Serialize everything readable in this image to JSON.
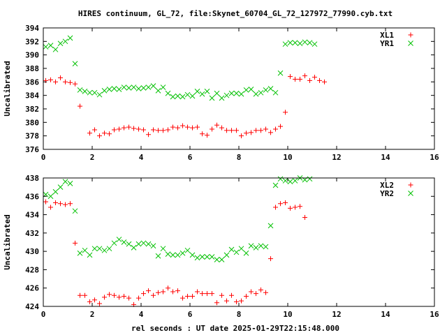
{
  "title": "HIRES continuum, GL_72, file:Skynet_60704_GL_72_127972_77990.cyb.txt",
  "xlabel": "rel seconds : UT date 2025-01-29T22:15:48.000",
  "colors": {
    "L": "#ff0000",
    "R": "#00c000",
    "frame": "#000000"
  },
  "chart_data": [
    {
      "type": "scatter",
      "title": "HIRES continuum, GL_72, file:Skynet_60704_GL_72_127972_77990.cyb.txt",
      "xlabel": "",
      "ylabel": "Uncalibrated",
      "xlim": [
        0,
        16
      ],
      "ylim": [
        376,
        394
      ],
      "xticks": [
        0,
        2,
        4,
        6,
        8,
        10,
        12,
        14,
        16
      ],
      "yticks": [
        376,
        378,
        380,
        382,
        384,
        386,
        388,
        390,
        392,
        394
      ],
      "grid": false,
      "legend_position": "top-right",
      "series": [
        {
          "name": "XL1",
          "marker": "plus",
          "color": "#ff0000",
          "x": [
            0.1,
            0.3,
            0.5,
            0.7,
            0.9,
            1.1,
            1.3,
            1.5,
            1.7,
            1.9,
            2.1,
            2.3,
            2.5,
            2.7,
            2.9,
            3.1,
            3.3,
            3.5,
            3.7,
            3.9,
            4.1,
            4.3,
            4.5,
            4.7,
            4.9,
            5.1,
            5.3,
            5.5,
            5.7,
            5.9,
            6.1,
            6.3,
            6.5,
            6.7,
            6.9,
            7.1,
            7.3,
            7.5,
            7.7,
            7.9,
            8.1,
            8.3,
            8.5,
            8.7,
            8.9,
            9.1,
            9.3,
            9.5,
            9.7,
            9.9,
            10.1,
            10.3,
            10.5,
            10.7,
            10.9,
            11.1,
            11.3,
            11.5,
            11.7,
            11.9,
            12.1,
            12.3,
            12.5,
            12.7,
            12.9,
            13.1,
            13.3,
            13.5,
            13.7,
            13.9,
            14.1,
            14.3,
            14.5
          ],
          "y": [
            386.2,
            386.3,
            386.0,
            386.6,
            386.0,
            385.9,
            385.7,
            382.4,
            null,
            378.4,
            378.9,
            378.0,
            378.4,
            378.3,
            378.9,
            379.0,
            379.2,
            379.3,
            379.1,
            379.0,
            378.9,
            378.2,
            378.9,
            378.8,
            378.8,
            378.9,
            379.3,
            379.2,
            379.5,
            379.3,
            379.2,
            379.3,
            378.3,
            378.1,
            379.0,
            379.6,
            379.2,
            378.8,
            378.8,
            378.8,
            378.0,
            378.4,
            378.5,
            378.8,
            378.8,
            379.0,
            378.5,
            379.0,
            379.4,
            381.5,
            386.8,
            386.4,
            386.4,
            386.9,
            386.2,
            386.7,
            386.2,
            386.0,
            null,
            null,
            null,
            null,
            null,
            null,
            null,
            null,
            null,
            null,
            null,
            null,
            null,
            null,
            null
          ]
        },
        {
          "name": "YR1",
          "marker": "cross",
          "color": "#00c000",
          "x": [
            0.1,
            0.3,
            0.5,
            0.7,
            0.9,
            1.1,
            1.3,
            1.5,
            1.7,
            1.9,
            2.1,
            2.3,
            2.5,
            2.7,
            2.9,
            3.1,
            3.3,
            3.5,
            3.7,
            3.9,
            4.1,
            4.3,
            4.5,
            4.7,
            4.9,
            5.1,
            5.3,
            5.5,
            5.7,
            5.9,
            6.1,
            6.3,
            6.5,
            6.7,
            6.9,
            7.1,
            7.3,
            7.5,
            7.7,
            7.9,
            8.1,
            8.3,
            8.5,
            8.7,
            8.9,
            9.1,
            9.3,
            9.5,
            9.7,
            9.9,
            10.1,
            10.3,
            10.5,
            10.7,
            10.9,
            11.1,
            11.3,
            11.5,
            11.7,
            11.9,
            12.1,
            12.3,
            12.5,
            12.7,
            12.9,
            13.1,
            13.3,
            13.5,
            13.7,
            13.9,
            14.1,
            14.3,
            14.5
          ],
          "y": [
            391.2,
            391.4,
            390.8,
            391.7,
            392.0,
            392.5,
            388.7,
            384.8,
            384.6,
            384.4,
            384.4,
            384.1,
            384.7,
            384.9,
            385.0,
            384.9,
            385.2,
            385.1,
            385.2,
            385.0,
            385.1,
            385.2,
            385.4,
            384.7,
            385.2,
            384.3,
            383.8,
            383.9,
            383.8,
            384.1,
            383.9,
            384.6,
            384.2,
            384.6,
            383.6,
            384.3,
            383.6,
            384.0,
            384.3,
            384.3,
            384.2,
            384.8,
            384.9,
            384.2,
            384.4,
            384.8,
            385.0,
            384.4,
            387.3,
            391.6,
            391.8,
            391.8,
            391.7,
            391.9,
            391.8,
            391.6,
            null,
            null,
            null,
            null,
            null,
            null,
            null,
            null,
            null,
            null,
            null,
            null,
            null,
            null,
            null,
            null,
            null
          ]
        }
      ]
    },
    {
      "type": "scatter",
      "title": "",
      "xlabel": "rel seconds : UT date 2025-01-29T22:15:48.000",
      "ylabel": "Uncalibrated",
      "xlim": [
        0,
        16
      ],
      "ylim": [
        424,
        438
      ],
      "xticks": [
        0,
        2,
        4,
        6,
        8,
        10,
        12,
        14,
        16
      ],
      "yticks": [
        424,
        426,
        428,
        430,
        432,
        434,
        436,
        438
      ],
      "grid": false,
      "legend_position": "top-right",
      "series": [
        {
          "name": "XL2",
          "marker": "plus",
          "color": "#ff0000",
          "x": [
            0.1,
            0.3,
            0.5,
            0.7,
            0.9,
            1.1,
            1.3,
            1.5,
            1.7,
            1.9,
            2.1,
            2.3,
            2.5,
            2.7,
            2.9,
            3.1,
            3.3,
            3.5,
            3.7,
            3.9,
            4.1,
            4.3,
            4.5,
            4.7,
            4.9,
            5.1,
            5.3,
            5.5,
            5.7,
            5.9,
            6.1,
            6.3,
            6.5,
            6.7,
            6.9,
            7.1,
            7.3,
            7.5,
            7.7,
            7.9,
            8.1,
            8.3,
            8.5,
            8.7,
            8.9,
            9.1,
            9.3,
            9.5,
            9.7,
            9.9,
            10.1,
            10.3,
            10.5,
            10.7,
            10.9,
            11.1,
            11.3,
            11.5,
            11.7,
            11.9,
            12.1,
            12.3,
            12.5,
            12.7,
            12.9,
            13.1,
            13.3,
            13.5,
            13.7,
            13.9,
            14.1,
            14.3,
            14.5
          ],
          "y": [
            435.4,
            434.8,
            435.3,
            435.2,
            435.1,
            435.2,
            430.9,
            425.2,
            425.2,
            424.5,
            424.7,
            424.3,
            425.0,
            425.3,
            425.2,
            425.0,
            425.1,
            424.9,
            424.2,
            424.9,
            425.4,
            425.7,
            425.2,
            425.5,
            425.6,
            426.0,
            425.6,
            425.7,
            424.9,
            425.1,
            425.1,
            425.6,
            425.4,
            425.4,
            425.4,
            424.4,
            425.2,
            424.6,
            425.2,
            424.5,
            424.6,
            425.1,
            425.6,
            425.4,
            425.8,
            425.5,
            429.2,
            434.8,
            435.2,
            435.3,
            434.7,
            434.8,
            434.9,
            433.7,
            null,
            null,
            null,
            null,
            null,
            null,
            null,
            null,
            null,
            null,
            null,
            null,
            null,
            null,
            null,
            null,
            null,
            null,
            null
          ]
        },
        {
          "name": "YR2",
          "marker": "cross",
          "color": "#00c000",
          "x": [
            0.1,
            0.3,
            0.5,
            0.7,
            0.9,
            1.1,
            1.3,
            1.5,
            1.7,
            1.9,
            2.1,
            2.3,
            2.5,
            2.7,
            2.9,
            3.1,
            3.3,
            3.5,
            3.7,
            3.9,
            4.1,
            4.3,
            4.5,
            4.7,
            4.9,
            5.1,
            5.3,
            5.5,
            5.7,
            5.9,
            6.1,
            6.3,
            6.5,
            6.7,
            6.9,
            7.1,
            7.3,
            7.5,
            7.7,
            7.9,
            8.1,
            8.3,
            8.5,
            8.7,
            8.9,
            9.1,
            9.3,
            9.5,
            9.7,
            9.9,
            10.1,
            10.3,
            10.5,
            10.7,
            10.9,
            11.1,
            11.3,
            11.5,
            11.7,
            11.9,
            12.1,
            12.3,
            12.5,
            12.7,
            12.9,
            13.1,
            13.3,
            13.5,
            13.7,
            13.9,
            14.1,
            14.3,
            14.5
          ],
          "y": [
            436.2,
            436.0,
            436.5,
            437.0,
            437.6,
            437.4,
            434.4,
            429.8,
            430.1,
            429.6,
            430.3,
            430.3,
            430.1,
            430.3,
            430.9,
            431.3,
            431.0,
            430.8,
            430.4,
            430.8,
            430.9,
            430.8,
            430.6,
            429.5,
            430.3,
            429.7,
            429.6,
            429.6,
            429.8,
            430.1,
            429.6,
            429.3,
            429.4,
            429.4,
            429.4,
            429.1,
            429.1,
            429.6,
            430.2,
            429.9,
            430.3,
            429.8,
            430.6,
            430.4,
            430.6,
            430.5,
            432.8,
            437.2,
            437.9,
            437.7,
            437.6,
            437.7,
            438.0,
            437.8,
            437.9,
            null,
            null,
            null,
            null,
            null,
            null,
            null,
            null,
            null,
            null,
            null,
            null,
            null,
            null,
            null,
            null,
            null,
            null
          ]
        }
      ]
    }
  ]
}
